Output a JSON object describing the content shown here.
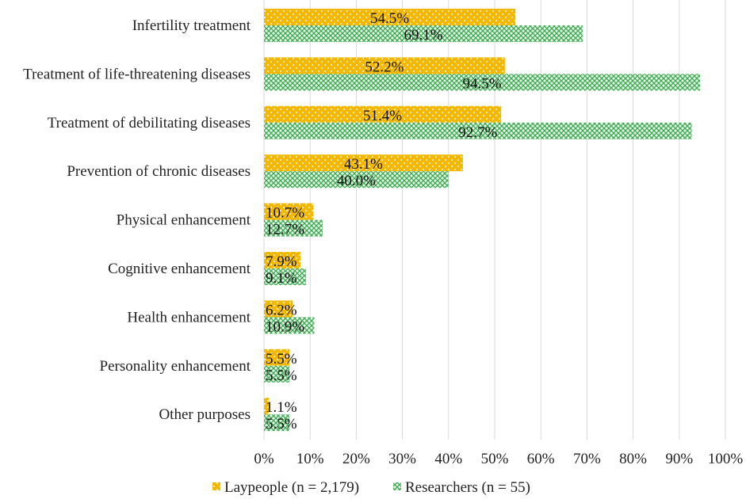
{
  "chart_data": {
    "type": "bar",
    "orientation": "horizontal",
    "title": "",
    "xlabel": "",
    "ylabel": "",
    "categories": [
      "Infertility treatment",
      "Treatment of life-threatening diseases",
      "Treatment of debilitating diseases",
      "Prevention of chronic diseases",
      "Physical enhancement",
      "Cognitive enhancement",
      "Health enhancement",
      "Personality enhancement",
      "Other purposes"
    ],
    "series": [
      {
        "name": "Laypeople (n = 2,179)",
        "color": "#f5b800",
        "pattern": "white dots",
        "values": [
          54.5,
          52.2,
          51.4,
          43.1,
          10.7,
          7.9,
          6.2,
          5.5,
          1.1
        ],
        "labels": [
          "54.5%",
          "52.2%",
          "51.4%",
          "43.1%",
          "10.7%",
          "7.9%",
          "6.2%",
          "5.5%",
          "1.1%"
        ]
      },
      {
        "name": "Researchers (n = 55)",
        "color": "#3aa84e",
        "pattern": "green cross-hatch",
        "values": [
          69.1,
          94.5,
          92.7,
          40.0,
          12.7,
          9.1,
          10.9,
          5.5,
          5.5
        ],
        "labels": [
          "69.1%",
          "94.5%",
          "92.7%",
          "40.0%",
          "12.7%",
          "9.1%",
          "10.9%",
          "5.5%",
          "5.5%"
        ]
      }
    ],
    "xlim": [
      0,
      100
    ],
    "ticks": [
      0,
      10,
      20,
      30,
      40,
      50,
      60,
      70,
      80,
      90,
      100
    ],
    "tick_labels": [
      "0%",
      "10%",
      "20%",
      "30%",
      "40%",
      "50%",
      "60%",
      "70%",
      "80%",
      "90%",
      "100%"
    ],
    "grid": "vertical",
    "legend_position": "bottom-center"
  }
}
